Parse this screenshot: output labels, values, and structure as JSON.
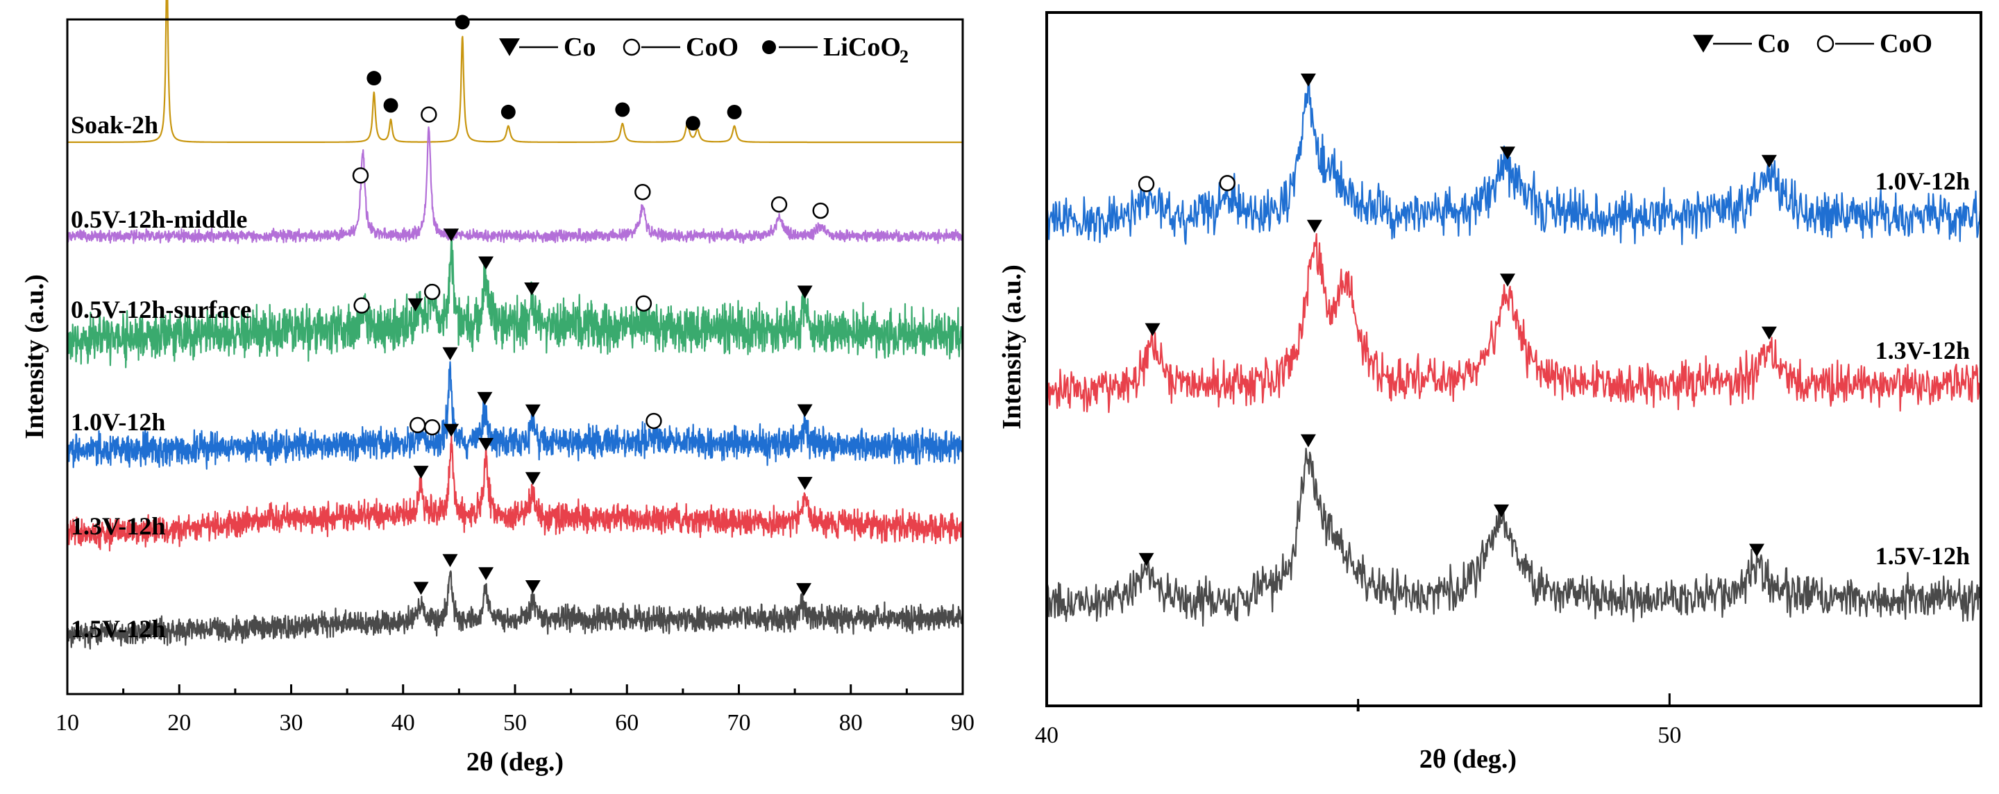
{
  "chart_data": [
    {
      "type": "line",
      "xlabel": "2θ (deg.)",
      "ylabel": "Intensity (a.u.)",
      "xlim": [
        10,
        90
      ],
      "x_ticks": [
        "10",
        "20",
        "30",
        "40",
        "50",
        "60",
        "70",
        "80",
        "90"
      ],
      "legend": {
        "placement": "top-right",
        "items": [
          {
            "symbol": "triangle-down",
            "dash": "—",
            "label": "Co",
            "sub": ""
          },
          {
            "symbol": "circle-open",
            "dash": "—",
            "label": "CoO",
            "sub": ""
          },
          {
            "symbol": "circle-filled",
            "dash": "—",
            "label": "LiCoO",
            "sub": "2"
          }
        ]
      },
      "series": [
        {
          "name": "Soak-2h",
          "color": "#c8960f",
          "noise": 0.0,
          "baseline": [
            [
              10,
              0.0
            ],
            [
              90,
              0.0
            ]
          ],
          "peaks": [
            [
              18.9,
              14,
              0.12
            ],
            [
              37.4,
              4.0,
              0.15
            ],
            [
              38.9,
              1.8,
              0.15
            ],
            [
              45.3,
              8.5,
              0.14
            ],
            [
              49.4,
              1.3,
              0.2
            ],
            [
              59.6,
              1.5,
              0.2
            ],
            [
              65.4,
              1.5,
              0.2
            ],
            [
              66.3,
              1.0,
              0.2
            ],
            [
              69.6,
              1.3,
              0.2
            ]
          ],
          "markers": [
            {
              "x": 18.9,
              "type": "filled"
            },
            {
              "x": 37.4,
              "type": "filled"
            },
            {
              "x": 38.9,
              "type": "filled"
            },
            {
              "x": 45.3,
              "type": "filled"
            },
            {
              "x": 49.4,
              "type": "filled"
            },
            {
              "x": 59.6,
              "type": "filled"
            },
            {
              "x": 65.9,
              "type": "filled"
            },
            {
              "x": 69.6,
              "type": "filled"
            }
          ]
        },
        {
          "name": "0.5V-12h-middle",
          "color": "#b36fd8",
          "noise": 0.22,
          "baseline": [
            [
              10,
              0.0
            ],
            [
              90,
              0.0
            ]
          ],
          "peaks": [
            [
              36.4,
              6.8,
              0.22
            ],
            [
              42.3,
              8.6,
              0.2
            ],
            [
              61.4,
              2.4,
              0.3
            ],
            [
              73.6,
              1.4,
              0.35
            ],
            [
              77.3,
              0.9,
              0.35
            ]
          ],
          "markers": [
            {
              "x": 36.2,
              "type": "open"
            },
            {
              "x": 42.3,
              "type": "open"
            },
            {
              "x": 61.4,
              "type": "open"
            },
            {
              "x": 73.6,
              "type": "open"
            },
            {
              "x": 77.3,
              "type": "open"
            }
          ]
        },
        {
          "name": "0.5V-12h-surface",
          "color": "#3aaa6e",
          "noise": 0.9,
          "baseline": [
            [
              10,
              -0.5
            ],
            [
              30,
              0.3
            ],
            [
              45,
              0.8
            ],
            [
              60,
              0.6
            ],
            [
              90,
              0.0
            ]
          ],
          "peaks": [
            [
              36.5,
              1.0,
              0.3
            ],
            [
              41.5,
              1.8,
              0.25
            ],
            [
              42.5,
              1.6,
              0.25
            ],
            [
              44.3,
              6.0,
              0.22
            ],
            [
              47.4,
              3.8,
              0.25
            ],
            [
              51.5,
              1.8,
              0.3
            ],
            [
              61.5,
              0.8,
              0.4
            ],
            [
              75.9,
              2.0,
              0.3
            ]
          ],
          "markers": [
            {
              "x": 36.3,
              "type": "open"
            },
            {
              "x": 41.1,
              "type": "tri"
            },
            {
              "x": 42.6,
              "type": "open"
            },
            {
              "x": 44.3,
              "type": "tri"
            },
            {
              "x": 47.4,
              "type": "tri"
            },
            {
              "x": 51.5,
              "type": "tri"
            },
            {
              "x": 61.5,
              "type": "open"
            },
            {
              "x": 75.9,
              "type": "tri"
            }
          ]
        },
        {
          "name": "1.0V-12h",
          "color": "#1f6fd2",
          "noise": 0.6,
          "baseline": [
            [
              10,
              -0.3
            ],
            [
              40,
              0.3
            ],
            [
              60,
              0.4
            ],
            [
              90,
              0.0
            ]
          ],
          "peaks": [
            [
              41.6,
              0.6,
              0.3
            ],
            [
              44.2,
              6.0,
              0.2
            ],
            [
              47.3,
              2.4,
              0.25
            ],
            [
              51.6,
              1.4,
              0.3
            ],
            [
              62.4,
              0.6,
              0.4
            ],
            [
              75.9,
              1.6,
              0.3
            ]
          ],
          "markers": [
            {
              "x": 41.3,
              "type": "open"
            },
            {
              "x": 42.6,
              "type": "open"
            },
            {
              "x": 44.2,
              "type": "tri"
            },
            {
              "x": 47.3,
              "type": "tri"
            },
            {
              "x": 51.6,
              "type": "tri"
            },
            {
              "x": 62.4,
              "type": "open"
            },
            {
              "x": 75.9,
              "type": "tri"
            }
          ]
        },
        {
          "name": "1.3V-12h",
          "color": "#e8414b",
          "noise": 0.6,
          "baseline": [
            [
              10,
              0.0
            ],
            [
              18,
              0.2
            ],
            [
              28,
              1.2
            ],
            [
              40,
              1.6
            ],
            [
              60,
              1.3
            ],
            [
              90,
              0.4
            ]
          ],
          "peaks": [
            [
              41.6,
              2.6,
              0.25
            ],
            [
              44.3,
              6.4,
              0.2
            ],
            [
              47.4,
              5.2,
              0.25
            ],
            [
              51.6,
              2.2,
              0.3
            ],
            [
              75.9,
              2.4,
              0.3
            ]
          ],
          "markers": [
            {
              "x": 41.6,
              "type": "tri"
            },
            {
              "x": 44.3,
              "type": "tri"
            },
            {
              "x": 47.4,
              "type": "tri"
            },
            {
              "x": 51.6,
              "type": "tri"
            },
            {
              "x": 75.9,
              "type": "tri"
            }
          ]
        },
        {
          "name": "1.5V-12h",
          "color": "#4a4a4a",
          "noise": 0.6,
          "baseline": [
            [
              10,
              0.0
            ],
            [
              20,
              0.5
            ],
            [
              40,
              1.3
            ],
            [
              60,
              1.7
            ],
            [
              90,
              1.8
            ]
          ],
          "peaks": [
            [
              41.6,
              2.0,
              0.3
            ],
            [
              44.2,
              4.8,
              0.22
            ],
            [
              47.4,
              3.4,
              0.25
            ],
            [
              51.6,
              2.0,
              0.3
            ],
            [
              75.8,
              1.5,
              0.35
            ]
          ],
          "markers": [
            {
              "x": 41.6,
              "type": "tri"
            },
            {
              "x": 44.2,
              "type": "tri"
            },
            {
              "x": 47.4,
              "type": "tri"
            },
            {
              "x": 51.6,
              "type": "tri"
            },
            {
              "x": 75.8,
              "type": "tri"
            }
          ]
        }
      ]
    },
    {
      "type": "line",
      "xlabel": "2θ (deg.)",
      "ylabel": "Intensity (a.u.)",
      "xlim": [
        40,
        55
      ],
      "x_ticks": [
        "40",
        "50"
      ],
      "legend": {
        "placement": "top-right",
        "items": [
          {
            "symbol": "triangle-down",
            "dash": "—",
            "label": "Co",
            "sub": ""
          },
          {
            "symbol": "circle-open",
            "dash": "—",
            "label": "CoO",
            "sub": ""
          }
        ]
      },
      "series": [
        {
          "name": "1.0V-12h",
          "color": "#1f6fd2",
          "noise": 0.7,
          "baseline": [
            [
              40,
              0.0
            ],
            [
              55,
              0.4
            ]
          ],
          "peaks": [
            [
              41.6,
              1.4,
              0.15
            ],
            [
              42.9,
              1.3,
              0.15
            ],
            [
              44.2,
              7.0,
              0.14
            ],
            [
              44.6,
              2.0,
              0.35
            ],
            [
              47.4,
              3.2,
              0.28
            ],
            [
              51.6,
              2.6,
              0.22
            ]
          ],
          "markers": [
            {
              "x": 41.6,
              "type": "open"
            },
            {
              "x": 42.9,
              "type": "open"
            },
            {
              "x": 44.2,
              "type": "tri"
            },
            {
              "x": 47.4,
              "type": "tri"
            },
            {
              "x": 51.6,
              "type": "tri"
            }
          ]
        },
        {
          "name": "1.3V-12h",
          "color": "#e8414b",
          "noise": 0.6,
          "baseline": [
            [
              40,
              0.0
            ],
            [
              55,
              0.2
            ]
          ],
          "peaks": [
            [
              41.7,
              2.7,
              0.15
            ],
            [
              44.3,
              8.0,
              0.16
            ],
            [
              44.8,
              5.5,
              0.22
            ],
            [
              47.4,
              5.6,
              0.25
            ],
            [
              51.6,
              2.4,
              0.18
            ]
          ],
          "markers": [
            {
              "x": 41.7,
              "type": "tri"
            },
            {
              "x": 44.3,
              "type": "tri"
            },
            {
              "x": 47.4,
              "type": "tri"
            },
            {
              "x": 51.6,
              "type": "tri"
            }
          ]
        },
        {
          "name": "1.5V-12h",
          "color": "#4a4a4a",
          "noise": 0.6,
          "baseline": [
            [
              40,
              0.0
            ],
            [
              55,
              0.3
            ]
          ],
          "peaks": [
            [
              41.6,
              1.8,
              0.18
            ],
            [
              44.2,
              7.6,
              0.16
            ],
            [
              44.6,
              3.0,
              0.35
            ],
            [
              47.3,
              4.6,
              0.3
            ],
            [
              51.4,
              2.2,
              0.2
            ]
          ],
          "markers": [
            {
              "x": 41.6,
              "type": "tri"
            },
            {
              "x": 44.2,
              "type": "tri"
            },
            {
              "x": 47.3,
              "type": "tri"
            },
            {
              "x": 51.4,
              "type": "tri"
            }
          ]
        }
      ]
    }
  ]
}
